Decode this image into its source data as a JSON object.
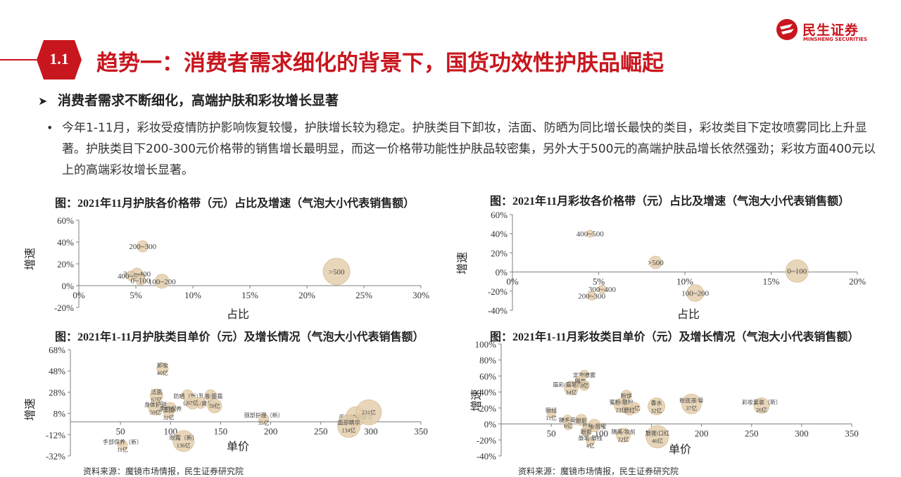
{
  "header": {
    "logo_cn": "民生证券",
    "logo_en": "MINSHENG SECURITIES",
    "section_number": "1.1",
    "title": "趋势一：消费者需求细化的背景下，国货功效性护肤品崛起"
  },
  "subheading": "消费者需求不断细化，高端护肤和彩妆增长显著",
  "paragraph": "今年1-11月，彩妆受疫情防护影响恢复较慢，护肤增长较为稳定。护肤类目下卸妆，洁面、防晒为同比增长最快的类目，彩妆类目下定妆喷雾同比上升显著。护肤类目下200-300元价格带的销售增长最明显，而这一价格带功能性护肤品较密集，另外大于500元的高端护肤品增长依然强劲；彩妆方面400元以上的高端彩妆增长显著。",
  "colors": {
    "brand_red": "#c8161e",
    "bubble_fill": "#e4cfae",
    "bubble_edge": "#d9bf96",
    "axis": "#7f7f7f"
  },
  "sources": [
    "资料来源：魔镜市场情报，民生证券研究院",
    "资料来源：魔镜市场情报，民生证券研究院"
  ],
  "chart_data": [
    {
      "id": "c1",
      "type": "scatter",
      "bubble": true,
      "title": "图：2021年11月护肤各价格带（元）占比及增速（气泡大小代表销售额）",
      "xlabel": "占比",
      "ylabel": "增速",
      "x_unit": "%",
      "xlim": [
        0,
        30
      ],
      "ylim": [
        -20,
        60
      ],
      "x_ticks": [
        0,
        5,
        10,
        15,
        20,
        25,
        30
      ],
      "y_ticks": [
        -20,
        0,
        20,
        40,
        60
      ],
      "x_tick_labels": [
        "0%",
        "5%",
        "10%",
        "15%",
        "20%",
        "25%",
        "30%"
      ],
      "y_tick_labels": [
        "-20%",
        "0%",
        "20%",
        "40%",
        "60%"
      ],
      "points": [
        {
          "label": "200~300",
          "x": 5.6,
          "y": 36,
          "size": 8
        },
        {
          "label": "300~400",
          "x": 5.1,
          "y": 11,
          "size": 8
        },
        {
          "label": "400~500",
          "x": 4.6,
          "y": 9,
          "size": 7
        },
        {
          "label": "0~100",
          "x": 5.4,
          "y": 5,
          "size": 7
        },
        {
          "label": "100~200",
          "x": 7.3,
          "y": 4,
          "size": 10
        },
        {
          "label": ">500",
          "x": 22.6,
          "y": 13,
          "size": 19
        }
      ]
    },
    {
      "id": "c2",
      "type": "scatter",
      "bubble": true,
      "title": "图：2021年11月彩妆各价格带（元）占比及增速（气泡大小代表销售额）",
      "xlabel": "占比",
      "ylabel": "增速",
      "x_unit": "%",
      "xlim": [
        0,
        20
      ],
      "ylim": [
        -40,
        60
      ],
      "x_ticks": [
        0,
        5,
        10,
        15,
        20
      ],
      "y_ticks": [
        -40,
        -20,
        0,
        20,
        40,
        60
      ],
      "x_tick_labels": [
        "0%",
        "5%",
        "10%",
        "15%",
        "20%"
      ],
      "y_tick_labels": [
        "-40%",
        "-20%",
        "0%",
        "20%",
        "40%",
        "60%"
      ],
      "points": [
        {
          "label": "400~500",
          "x": 4.5,
          "y": 40,
          "size": 5
        },
        {
          "label": ">500",
          "x": 8.3,
          "y": 10,
          "size": 9
        },
        {
          "label": "0~100",
          "x": 16.5,
          "y": 1,
          "size": 16
        },
        {
          "label": "300~400",
          "x": 5.2,
          "y": -18,
          "size": 6
        },
        {
          "label": "200~300",
          "x": 4.6,
          "y": -25,
          "size": 6
        },
        {
          "label": "100~200",
          "x": 10.6,
          "y": -22,
          "size": 12
        }
      ]
    },
    {
      "id": "c3",
      "type": "scatter",
      "bubble": true,
      "title": "图：2021年1-11月护肤类目单价（元）及增长情况（气泡大小代表销售额）",
      "xlabel": "单价",
      "ylabel": "增速",
      "xlim": [
        0,
        350
      ],
      "ylim": [
        -32,
        68
      ],
      "x_ticks": [
        50,
        100,
        150,
        200,
        250,
        300,
        350
      ],
      "y_ticks": [
        -32,
        -12,
        8,
        28,
        48,
        68
      ],
      "x_tick_labels": [
        "50",
        "100",
        "150",
        "200",
        "250",
        "300",
        "350"
      ],
      "y_tick_labels": [
        "-32%",
        "-12%",
        "8%",
        "28%",
        "48%",
        "68%"
      ],
      "points": [
        {
          "label": "卸妆",
          "value_label": "40亿",
          "x": 92,
          "y": 50,
          "size": 8
        },
        {
          "label": "洁面",
          "value_label": "67亿",
          "x": 86,
          "y": 25,
          "size": 9
        },
        {
          "label": "身体护理",
          "value_label": "59亿",
          "x": 85,
          "y": 13,
          "size": 10
        },
        {
          "label": "防晒（新）",
          "value_label": "",
          "x": 117,
          "y": 25,
          "size": 8
        },
        {
          "label": "乳液/面霜",
          "value_label": "",
          "x": 140,
          "y": 25,
          "size": 8
        },
        {
          "label": "化妆水/爽肤水",
          "value_label": "",
          "x": 130,
          "y": 18,
          "size": 8
        },
        {
          "label": "手部保养",
          "value_label": "",
          "x": 100,
          "y": 13,
          "size": 8
        },
        {
          "label": "面膜",
          "value_label": "32亿",
          "x": 98,
          "y": 8,
          "size": 7
        },
        {
          "label": "",
          "value_label": "67亿",
          "x": 122,
          "y": 18,
          "size": 9
        },
        {
          "label": "",
          "value_label": "59亿",
          "x": 144,
          "y": 15,
          "size": 10
        },
        {
          "label": "颈部护理（新）",
          "value_label": "35亿",
          "x": 193,
          "y": 3,
          "size": 7
        },
        {
          "label": "面部护理套装",
          "value_label": "",
          "x": 285,
          "y": 5,
          "size": 14
        },
        {
          "label": "",
          "value_label": "231亿",
          "x": 298,
          "y": 9,
          "size": 18
        },
        {
          "label": "面部精华",
          "value_label": "134亿",
          "x": 278,
          "y": -4,
          "size": 16
        },
        {
          "label": "眼霜（新）",
          "value_label": "136亿",
          "x": 113,
          "y": -18,
          "size": 15
        },
        {
          "label": "手部保养（新）",
          "value_label": "11亿",
          "x": 52,
          "y": -22,
          "size": 7
        }
      ]
    },
    {
      "id": "c4",
      "type": "scatter",
      "bubble": true,
      "title": "图：2021年1-11月彩妆类目单价（元）及增长情况（气泡大小代表销售额）",
      "xlabel": "单价",
      "ylabel": "增速",
      "xlim": [
        0,
        350
      ],
      "ylim": [
        -40,
        100
      ],
      "x_ticks": [
        50,
        100,
        150,
        200,
        250,
        300,
        350
      ],
      "y_ticks": [
        -40,
        -20,
        0,
        20,
        40,
        60,
        80,
        100
      ],
      "x_tick_labels": [
        "50",
        "100",
        "150",
        "200",
        "250",
        "300",
        "350"
      ],
      "y_tick_labels": [
        "-40%",
        "-20%",
        "0%",
        "20%",
        "40%",
        "60%",
        "80%",
        "100%"
      ],
      "points": [
        {
          "label": "定妆喷雾",
          "value_label": "",
          "x": 83,
          "y": 62,
          "size": 6
        },
        {
          "label": "隔离",
          "value_label": "",
          "x": 79,
          "y": 54,
          "size": 7
        },
        {
          "label": "眉彩/眉笔/眉粉",
          "value_label": "34亿",
          "x": 70,
          "y": 45,
          "size": 10
        },
        {
          "label": "",
          "value_label": "3亿",
          "x": 83,
          "y": 48,
          "size": 7
        },
        {
          "label": "香水",
          "value_label": "32亿",
          "x": 155,
          "y": 22,
          "size": 12
        },
        {
          "label": "粉底液/膏",
          "value_label": "37亿",
          "x": 190,
          "y": 25,
          "size": 14
        },
        {
          "label": "彩妆套装（新）",
          "value_label": "26亿",
          "x": 260,
          "y": 23,
          "size": 11
        },
        {
          "label": "粉饼",
          "value_label": "",
          "x": 125,
          "y": 36,
          "size": 7
        },
        {
          "label": "蜜粉/散粉",
          "value_label": "23亿",
          "x": 120,
          "y": 23,
          "size": 10
        },
        {
          "label": "",
          "value_label": "11亿",
          "x": 133,
          "y": 20,
          "size": 8
        },
        {
          "label": "腮红",
          "value_label": "",
          "x": 128,
          "y": 18,
          "size": 8
        },
        {
          "label": "眼线",
          "value_label": "11亿",
          "x": 50,
          "y": 13,
          "size": 6
        },
        {
          "label": "睫毛膏",
          "value_label": "",
          "x": 66,
          "y": 6,
          "size": 6
        },
        {
          "label": "眼影",
          "value_label": "",
          "x": 80,
          "y": 5,
          "size": 8
        },
        {
          "label": "",
          "value_label": "6亿",
          "x": 67,
          "y": -2,
          "size": 6
        },
        {
          "label": "唇釉/唇蜜",
          "value_label": "",
          "x": 93,
          "y": -2,
          "size": 9
        },
        {
          "label": "眼影",
          "value_label": "",
          "x": 85,
          "y": -9,
          "size": 7
        },
        {
          "label": "唇笔/唇线",
          "value_label": "4亿",
          "x": 89,
          "y": -22,
          "size": 6
        },
        {
          "label": "隔离/妆前",
          "value_label": "22亿",
          "x": 122,
          "y": -14,
          "size": 10
        },
        {
          "label": "唇膏/口红",
          "value_label": "46亿",
          "x": 156,
          "y": -16,
          "size": 16
        }
      ]
    }
  ]
}
